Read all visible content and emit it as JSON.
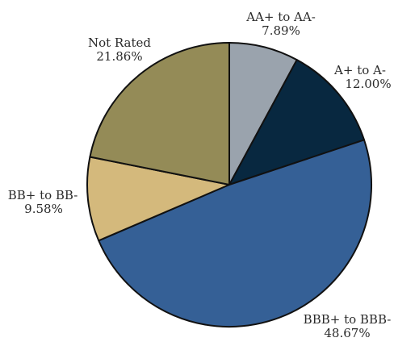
{
  "chart_data": {
    "type": "pie",
    "title": "",
    "slices": [
      {
        "label": "AA+ to AA-",
        "value": "7.89%",
        "percent": 7.89,
        "color": "#9aa3ad"
      },
      {
        "label": "A+ to A-",
        "value": "12.00%",
        "percent": 12.0,
        "color": "#082840"
      },
      {
        "label": "BBB+ to BBB-",
        "value": "48.67%",
        "percent": 48.67,
        "color": "#356096"
      },
      {
        "label": "BB+ to BB-",
        "value": "9.58%",
        "percent": 9.58,
        "color": "#d4b97c"
      },
      {
        "label": "Not Rated",
        "value": "21.86%",
        "percent": 21.86,
        "color": "#948b57"
      }
    ]
  }
}
